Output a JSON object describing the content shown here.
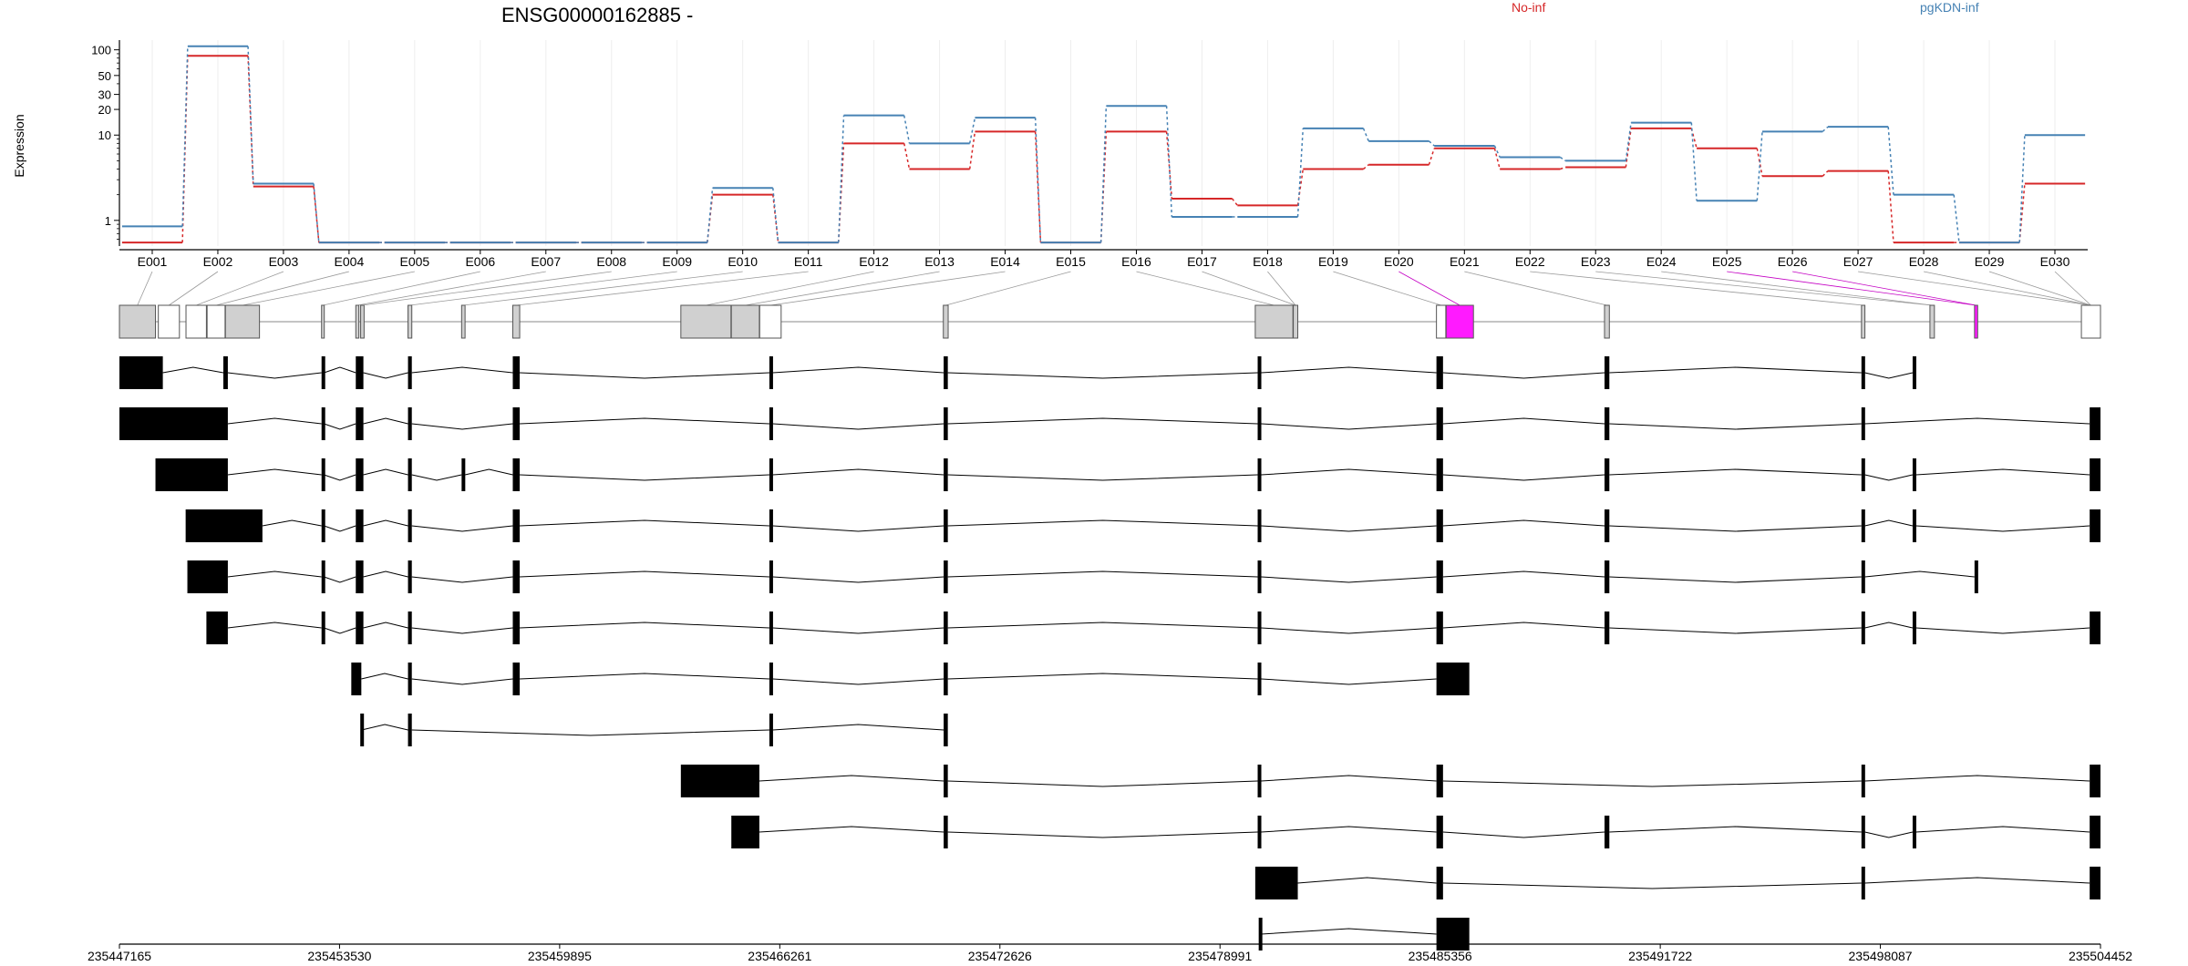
{
  "chart_data": {
    "type": "line",
    "title": "ENSG00000162885 -",
    "ylabel": "Expression",
    "yscale": "log",
    "ylim": [
      0.5,
      130
    ],
    "y_ticks": [
      1,
      10,
      20,
      30,
      50,
      100
    ],
    "y_tick_labels": [
      "1",
      "10",
      "20",
      "30",
      "50",
      "100"
    ],
    "legend_placement": "top",
    "categories": [
      "E001",
      "E002",
      "E003",
      "E004",
      "E005",
      "E006",
      "E007",
      "E008",
      "E009",
      "E010",
      "E011",
      "E012",
      "E013",
      "E014",
      "E015",
      "E016",
      "E017",
      "E018",
      "E019",
      "E020",
      "E021",
      "E022",
      "E023",
      "E024",
      "E025",
      "E026",
      "E027",
      "E028",
      "E029",
      "E030"
    ],
    "series": [
      {
        "name": "No-inf",
        "color": "#d62728",
        "values": [
          0.55,
          85,
          2.5,
          0.55,
          0.55,
          0.55,
          0.55,
          0.55,
          0.55,
          2.0,
          0.55,
          8,
          4,
          11,
          0.55,
          11,
          1.8,
          1.5,
          4,
          4.5,
          7,
          4,
          4.2,
          12,
          7,
          3.3,
          3.8,
          0.55,
          0.55,
          2.7
        ]
      },
      {
        "name": "pgKDN-inf",
        "color": "#4682b4",
        "values": [
          0.85,
          110,
          2.7,
          0.55,
          0.55,
          0.55,
          0.55,
          0.55,
          0.55,
          2.4,
          0.55,
          17,
          8,
          16,
          0.55,
          22,
          1.1,
          1.1,
          12,
          8.5,
          7.5,
          5.5,
          5,
          14,
          1.7,
          11,
          12.5,
          2,
          0.55,
          10
        ]
      }
    ],
    "gene_coordinate_ticks": [
      "235447165",
      "235453530",
      "235459895",
      "235466261",
      "235472626",
      "235478991",
      "235485356",
      "235491722",
      "235498087",
      "235504452"
    ],
    "gene_start": 235447165,
    "gene_end": 235504452,
    "exon_bins": [
      [
        235447165,
        235448207
      ],
      [
        235448290,
        235448900
      ],
      [
        235449090,
        235449680
      ],
      [
        235449700,
        235450220
      ],
      [
        235450230,
        235451215
      ],
      [
        235453010,
        235453080
      ],
      [
        235454000,
        235454090
      ],
      [
        235454140,
        235454240
      ],
      [
        235455510,
        235455620
      ],
      [
        235457060,
        235457160
      ],
      [
        235458540,
        235458740
      ],
      [
        235463400,
        235464850
      ],
      [
        235464860,
        235465670
      ],
      [
        235465680,
        235466300
      ],
      [
        235470990,
        235471130
      ],
      [
        235480010,
        235481100
      ],
      [
        235481110,
        235481240
      ],
      [
        235485250,
        235485520
      ],
      [
        235485530,
        235486320
      ],
      [
        235490110,
        235490250
      ],
      [
        235497540,
        235497640
      ],
      [
        235499520,
        235499650
      ],
      [
        235500810,
        235500900
      ],
      [
        235503900,
        235504452
      ]
    ],
    "highlighted_bins": [
      18,
      22
    ],
    "bin_for_exon": [
      0,
      1,
      2,
      3,
      4,
      5,
      6,
      7,
      8,
      9,
      10,
      11,
      12,
      13,
      14,
      15,
      16,
      16,
      17,
      18,
      19,
      20,
      21,
      21,
      22,
      22,
      23,
      23,
      23,
      23
    ],
    "transcripts": [
      [
        [
          235447165,
          235448420
        ],
        [
          235450170,
          235450300
        ],
        [
          235453010,
          235453080
        ],
        [
          235454000,
          235454220
        ],
        [
          235455510,
          235455620
        ],
        [
          235458540,
          235458740
        ],
        [
          235465960,
          235466060
        ],
        [
          235471000,
          235471120
        ],
        [
          235480080,
          235480180
        ],
        [
          235485250,
          235485440
        ],
        [
          235490110,
          235490250
        ],
        [
          235497540,
          235497640
        ],
        [
          235499020,
          235499120
        ]
      ],
      [
        [
          235447165,
          235450300
        ],
        [
          235453010,
          235453080
        ],
        [
          235454000,
          235454220
        ],
        [
          235455510,
          235455620
        ],
        [
          235458540,
          235458740
        ],
        [
          235465960,
          235466060
        ],
        [
          235471000,
          235471120
        ],
        [
          235480080,
          235480180
        ],
        [
          235485250,
          235485440
        ],
        [
          235490110,
          235490250
        ],
        [
          235497540,
          235497640
        ],
        [
          235504140,
          235504452
        ]
      ],
      [
        [
          235448207,
          235450300
        ],
        [
          235453010,
          235453080
        ],
        [
          235454000,
          235454220
        ],
        [
          235455510,
          235455620
        ],
        [
          235457060,
          235457160
        ],
        [
          235458540,
          235458740
        ],
        [
          235465960,
          235466060
        ],
        [
          235471000,
          235471120
        ],
        [
          235480080,
          235480180
        ],
        [
          235485250,
          235485440
        ],
        [
          235490110,
          235490250
        ],
        [
          235497540,
          235497640
        ],
        [
          235499020,
          235499120
        ],
        [
          235504140,
          235504452
        ]
      ],
      [
        [
          235449080,
          235451300
        ],
        [
          235453010,
          235453080
        ],
        [
          235454000,
          235454220
        ],
        [
          235455510,
          235455620
        ],
        [
          235458540,
          235458740
        ],
        [
          235465960,
          235466060
        ],
        [
          235471000,
          235471120
        ],
        [
          235480080,
          235480180
        ],
        [
          235485250,
          235485440
        ],
        [
          235490110,
          235490250
        ],
        [
          235497540,
          235497640
        ],
        [
          235499020,
          235499120
        ],
        [
          235504140,
          235504452
        ]
      ],
      [
        [
          235449130,
          235450300
        ],
        [
          235453010,
          235453080
        ],
        [
          235454000,
          235454220
        ],
        [
          235455510,
          235455620
        ],
        [
          235458540,
          235458740
        ],
        [
          235465960,
          235466060
        ],
        [
          235471000,
          235471120
        ],
        [
          235480080,
          235480180
        ],
        [
          235485250,
          235485440
        ],
        [
          235490110,
          235490250
        ],
        [
          235497540,
          235497640
        ],
        [
          235500810,
          235500900
        ]
      ],
      [
        [
          235449680,
          235450300
        ],
        [
          235453010,
          235453080
        ],
        [
          235454000,
          235454220
        ],
        [
          235455510,
          235455620
        ],
        [
          235458540,
          235458740
        ],
        [
          235465960,
          235466060
        ],
        [
          235471000,
          235471120
        ],
        [
          235480080,
          235480180
        ],
        [
          235485250,
          235485440
        ],
        [
          235490110,
          235490250
        ],
        [
          235497540,
          235497640
        ],
        [
          235499020,
          235499120
        ],
        [
          235504140,
          235504452
        ]
      ],
      [
        [
          235453870,
          235454160
        ],
        [
          235455510,
          235455620
        ],
        [
          235458540,
          235458740
        ],
        [
          235465960,
          235466060
        ],
        [
          235471000,
          235471120
        ],
        [
          235480080,
          235480180
        ],
        [
          235485250,
          235486200
        ]
      ],
      [
        [
          235454130,
          235454170
        ],
        [
          235455510,
          235455620
        ],
        [
          235465960,
          235466060
        ],
        [
          235471000,
          235471120
        ]
      ],
      [
        [
          235463400,
          235465670
        ],
        [
          235471000,
          235471120
        ],
        [
          235480080,
          235480180
        ],
        [
          235485250,
          235485440
        ],
        [
          235497540,
          235497640
        ],
        [
          235504140,
          235504452
        ]
      ],
      [
        [
          235464860,
          235465670
        ],
        [
          235471000,
          235471120
        ],
        [
          235480080,
          235480180
        ],
        [
          235485250,
          235485440
        ],
        [
          235490110,
          235490250
        ],
        [
          235497540,
          235497640
        ],
        [
          235499020,
          235499120
        ],
        [
          235504140,
          235504452
        ]
      ],
      [
        [
          235480010,
          235481240
        ],
        [
          235485250,
          235485440
        ],
        [
          235497540,
          235497640
        ],
        [
          235504140,
          235504452
        ]
      ],
      [
        [
          235480110,
          235480180
        ],
        [
          235485250,
          235486200
        ]
      ]
    ]
  }
}
